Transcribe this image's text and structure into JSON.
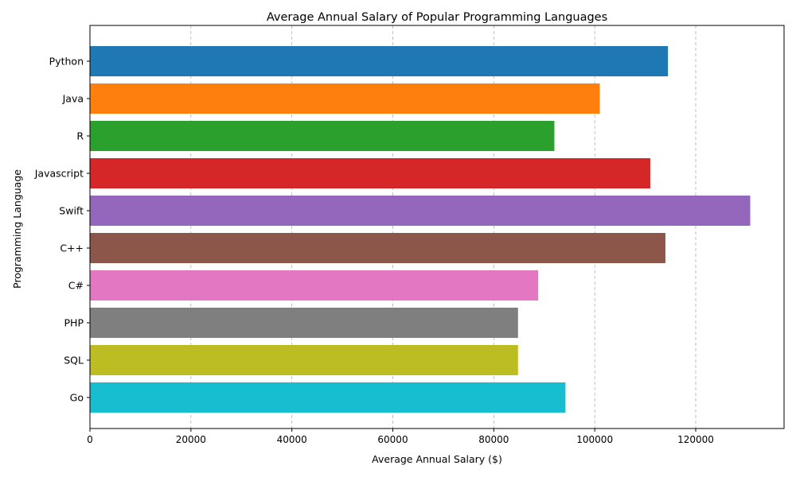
{
  "chart_data": {
    "type": "bar",
    "orientation": "horizontal",
    "title": "Average Annual Salary of Popular Programming Languages",
    "xlabel": "Average Annual Salary ($)",
    "ylabel": "Programming Language",
    "xlim": [
      0,
      137500
    ],
    "xticks": [
      0,
      20000,
      40000,
      60000,
      80000,
      100000,
      120000
    ],
    "grid": {
      "x": true,
      "style": "dashed",
      "y": false
    },
    "categories": [
      "Python",
      "Java",
      "R",
      "Javascript",
      "Swift",
      "C++",
      "C#",
      "PHP",
      "SQL",
      "Go"
    ],
    "values": [
      114500,
      101000,
      92000,
      111000,
      130800,
      114000,
      88800,
      84800,
      84800,
      94200
    ],
    "colors": [
      "#1f77b4",
      "#ff7f0e",
      "#2ca02c",
      "#d62728",
      "#9467bd",
      "#8c564b",
      "#e377c2",
      "#7f7f7f",
      "#bcbd22",
      "#17becf"
    ]
  }
}
